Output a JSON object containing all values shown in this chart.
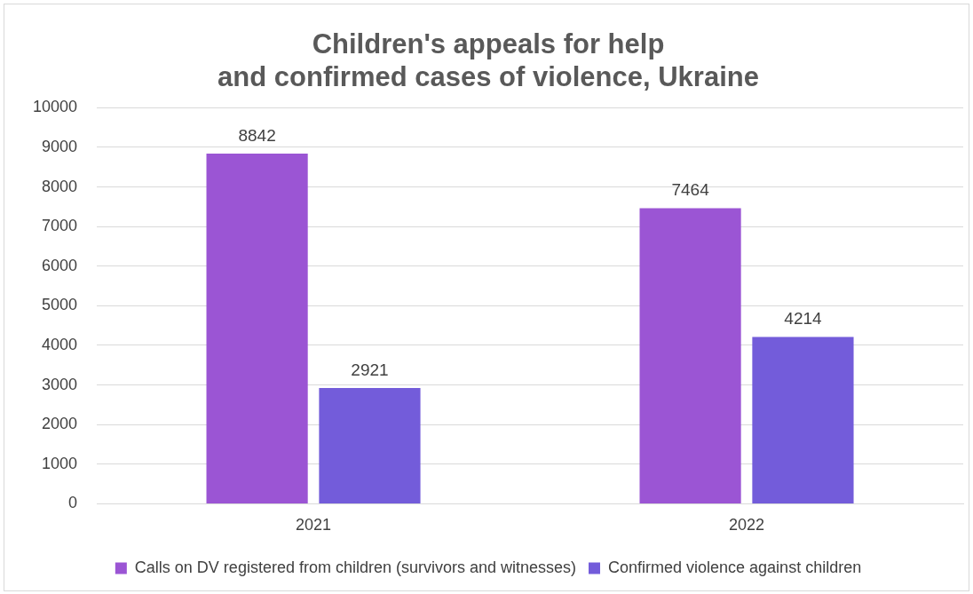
{
  "chart_data": {
    "type": "bar",
    "title": "Children's appeals for help\nand confirmed cases of violence, Ukraine",
    "categories": [
      "2021",
      "2022"
    ],
    "series": [
      {
        "name": "Calls on DV registered from children (survivors and witnesses)",
        "color": "#9b55d4",
        "values": [
          8842,
          7464
        ]
      },
      {
        "name": "Confirmed violence against children",
        "color": "#735cda",
        "values": [
          2921,
          4214
        ]
      }
    ],
    "ylim": [
      0,
      10000
    ],
    "yticks": [
      0,
      1000,
      2000,
      3000,
      4000,
      5000,
      6000,
      7000,
      8000,
      9000,
      10000
    ],
    "grid": "y",
    "legend": "bottom",
    "data_labels": true
  }
}
